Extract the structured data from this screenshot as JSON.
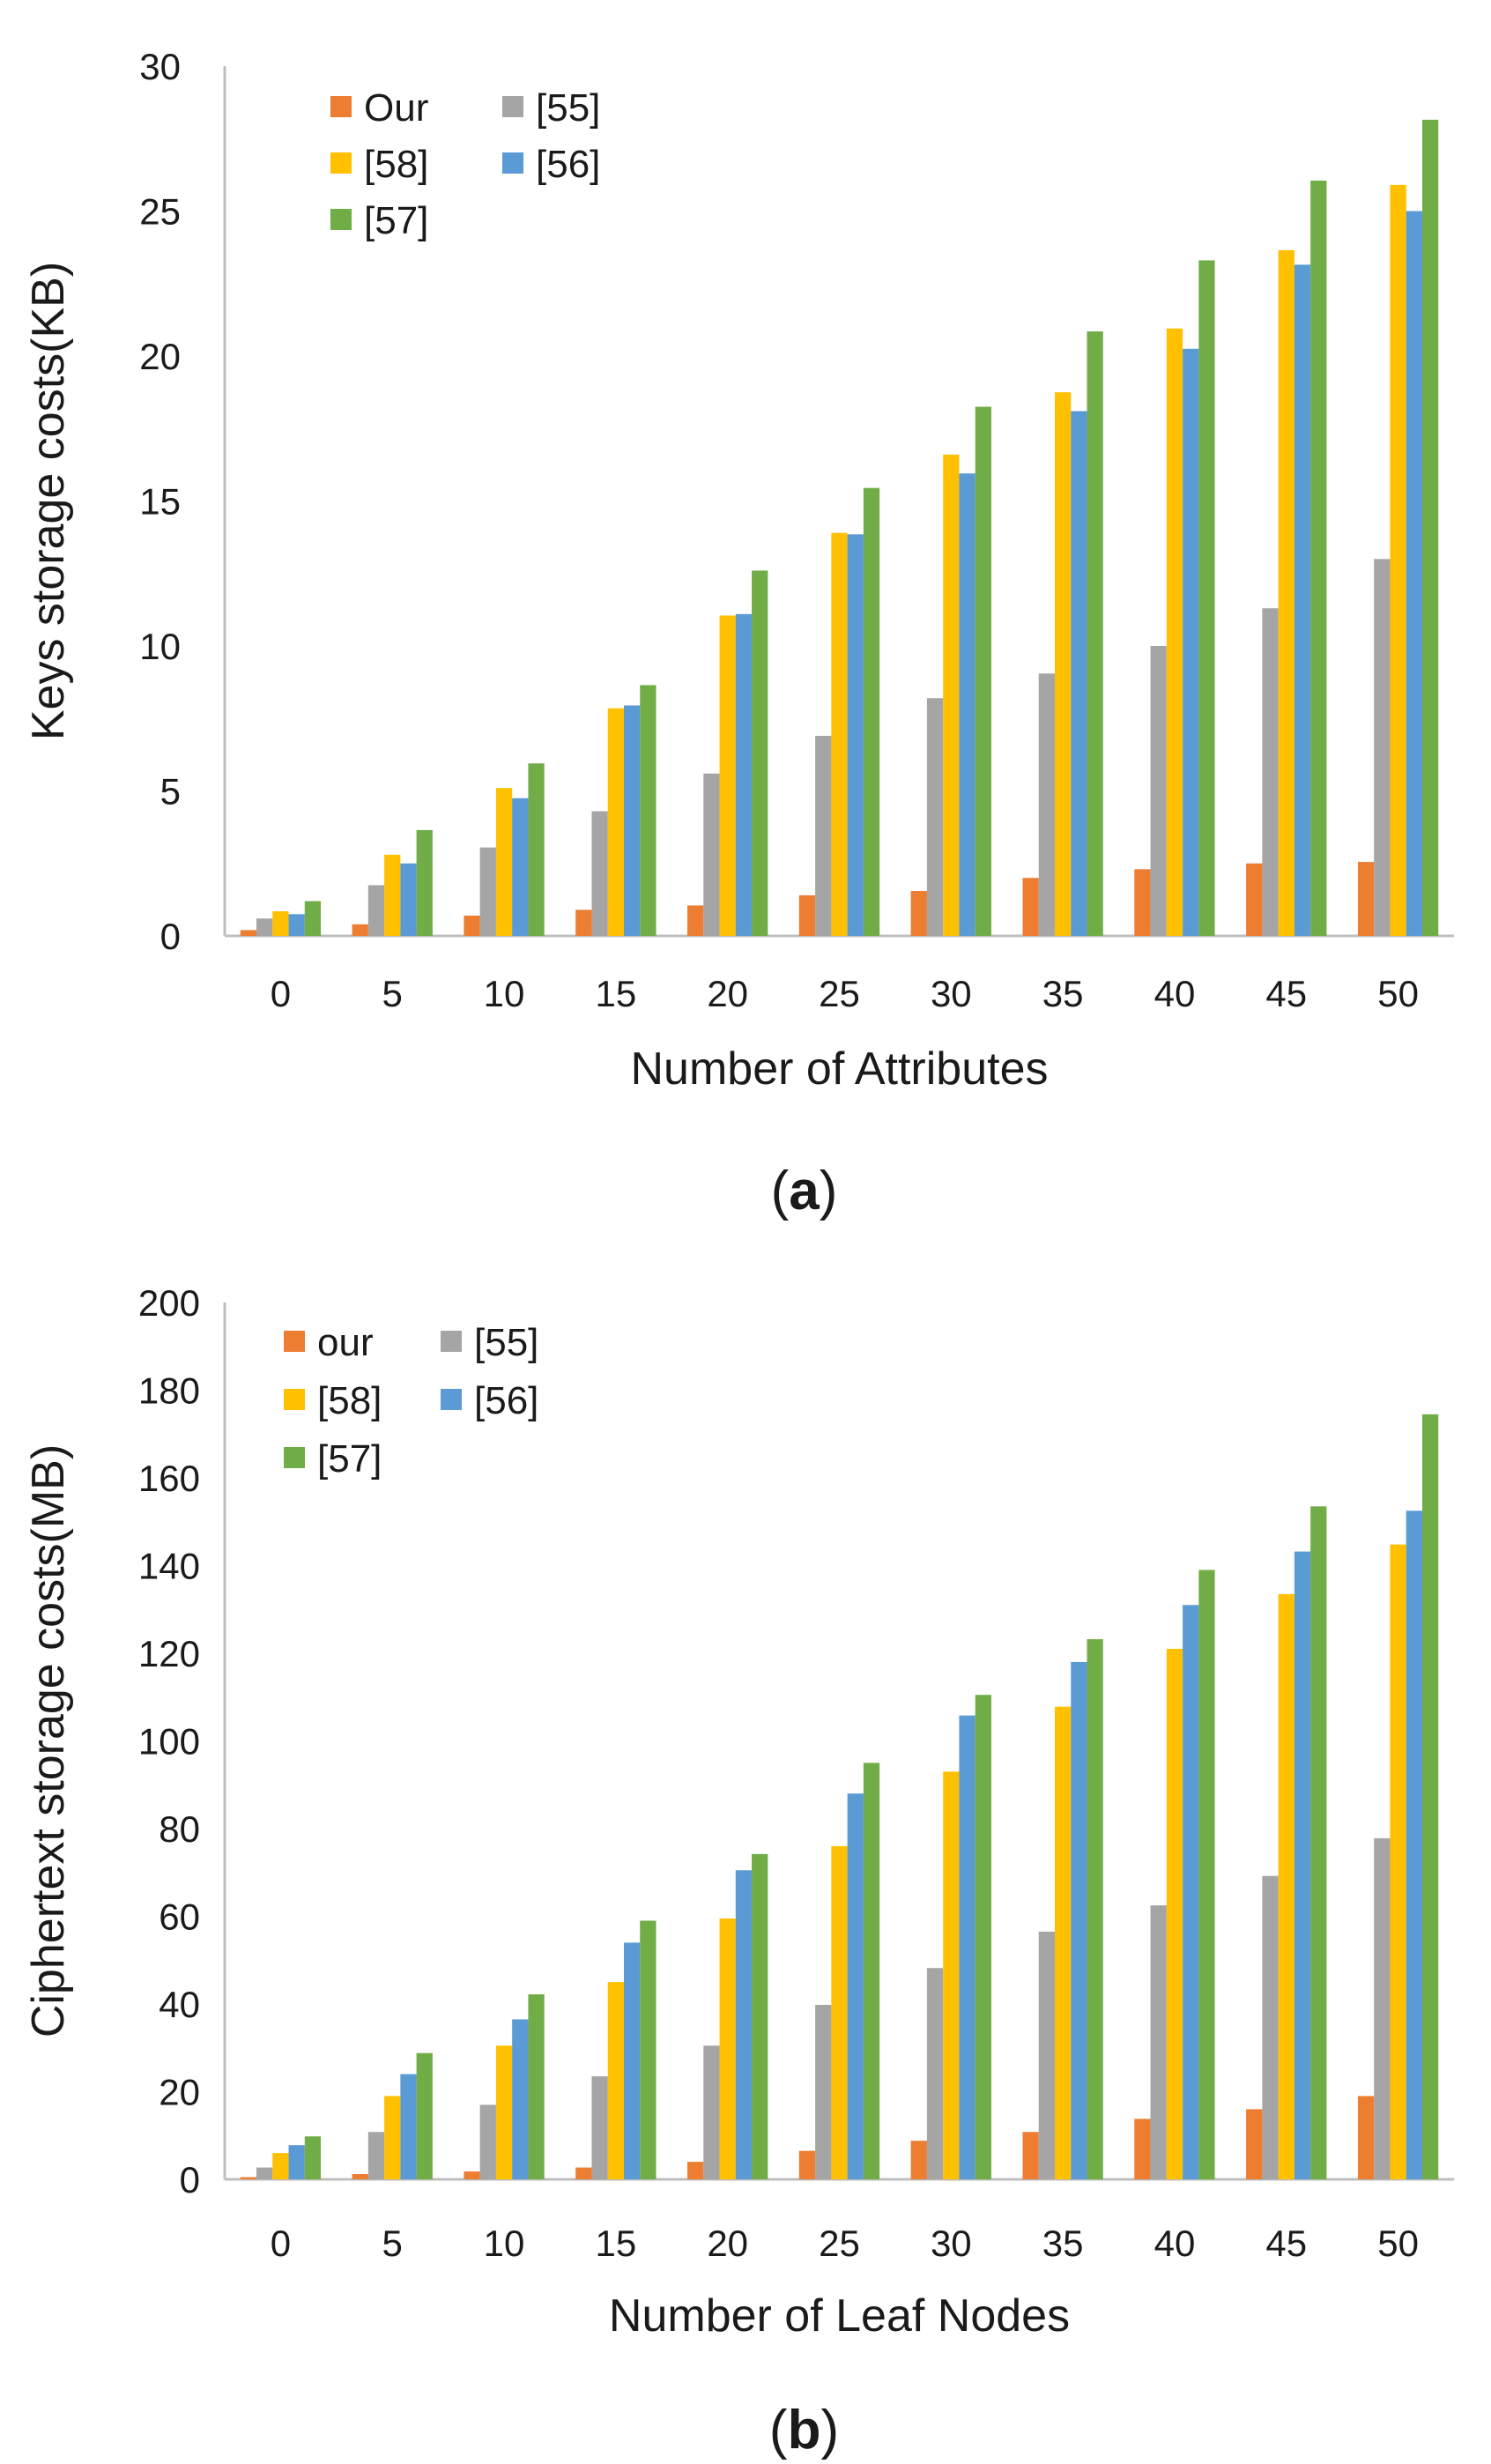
{
  "chart_data": [
    {
      "type": "bar",
      "panel_label": "a",
      "xlabel": "Number of Attributes",
      "ylabel": "Keys storage costs(KB)",
      "categories": [
        "0",
        "5",
        "10",
        "15",
        "20",
        "25",
        "30",
        "35",
        "40",
        "45",
        "50"
      ],
      "ylim": [
        0,
        30
      ],
      "yticks": [
        "0",
        "5",
        "10",
        "15",
        "20",
        "25",
        "30"
      ],
      "grid": false,
      "legend_position": "top-left",
      "series": [
        {
          "name": "Our",
          "color": "#ED7D31",
          "values": [
            0.2,
            0.4,
            0.7,
            0.9,
            1.05,
            1.4,
            1.55,
            2.0,
            2.3,
            2.5,
            2.55
          ]
        },
        {
          "name": "[55]",
          "color": "#A5A5A5",
          "values": [
            0.6,
            1.75,
            3.05,
            4.3,
            5.6,
            6.9,
            8.2,
            9.05,
            10.0,
            11.3,
            13.0
          ]
        },
        {
          "name": "[58]",
          "color": "#FFC000",
          "values": [
            0.85,
            2.8,
            5.1,
            7.85,
            11.05,
            13.9,
            16.6,
            18.75,
            20.95,
            23.65,
            25.9
          ]
        },
        {
          "name": "[56]",
          "color": "#5B9BD5",
          "values": [
            0.75,
            2.5,
            4.75,
            7.95,
            11.1,
            13.85,
            15.95,
            18.1,
            20.25,
            23.15,
            25.0
          ]
        },
        {
          "name": "[57]",
          "color": "#70AD47",
          "values": [
            1.2,
            3.65,
            5.95,
            8.65,
            12.6,
            15.45,
            18.25,
            20.85,
            23.3,
            26.05,
            28.15
          ]
        }
      ]
    },
    {
      "type": "bar",
      "panel_label": "b",
      "xlabel": "Number of Leaf Nodes",
      "ylabel": "Ciphertext storage costs(MB)",
      "categories": [
        "0",
        "5",
        "10",
        "15",
        "20",
        "25",
        "30",
        "35",
        "40",
        "45",
        "50"
      ],
      "ylim": [
        0,
        200
      ],
      "yticks": [
        "0",
        "20",
        "40",
        "60",
        "80",
        "100",
        "120",
        "140",
        "160",
        "180",
        "200"
      ],
      "grid": false,
      "legend_position": "top-left",
      "series": [
        {
          "name": "our",
          "color": "#ED7D31",
          "values": [
            0.5,
            1.2,
            1.8,
            2.7,
            4.0,
            6.5,
            8.8,
            10.8,
            13.8,
            16.0,
            19.0
          ]
        },
        {
          "name": "[55]",
          "color": "#A5A5A5",
          "values": [
            2.7,
            10.8,
            17.0,
            23.5,
            30.5,
            39.8,
            48.2,
            56.5,
            62.5,
            69.2,
            77.8
          ]
        },
        {
          "name": "[58]",
          "color": "#FFC000",
          "values": [
            6.0,
            19.0,
            30.5,
            45.0,
            59.5,
            76.0,
            93.0,
            107.8,
            121.0,
            133.5,
            144.8
          ]
        },
        {
          "name": "[56]",
          "color": "#5B9BD5",
          "values": [
            7.8,
            24.0,
            36.5,
            54.0,
            70.5,
            88.0,
            105.8,
            118.0,
            131.0,
            143.2,
            152.5
          ]
        },
        {
          "name": "[57]",
          "color": "#70AD47",
          "values": [
            9.8,
            28.8,
            42.2,
            59.0,
            74.2,
            95.0,
            110.5,
            123.2,
            139.0,
            153.5,
            174.5
          ]
        }
      ]
    }
  ]
}
